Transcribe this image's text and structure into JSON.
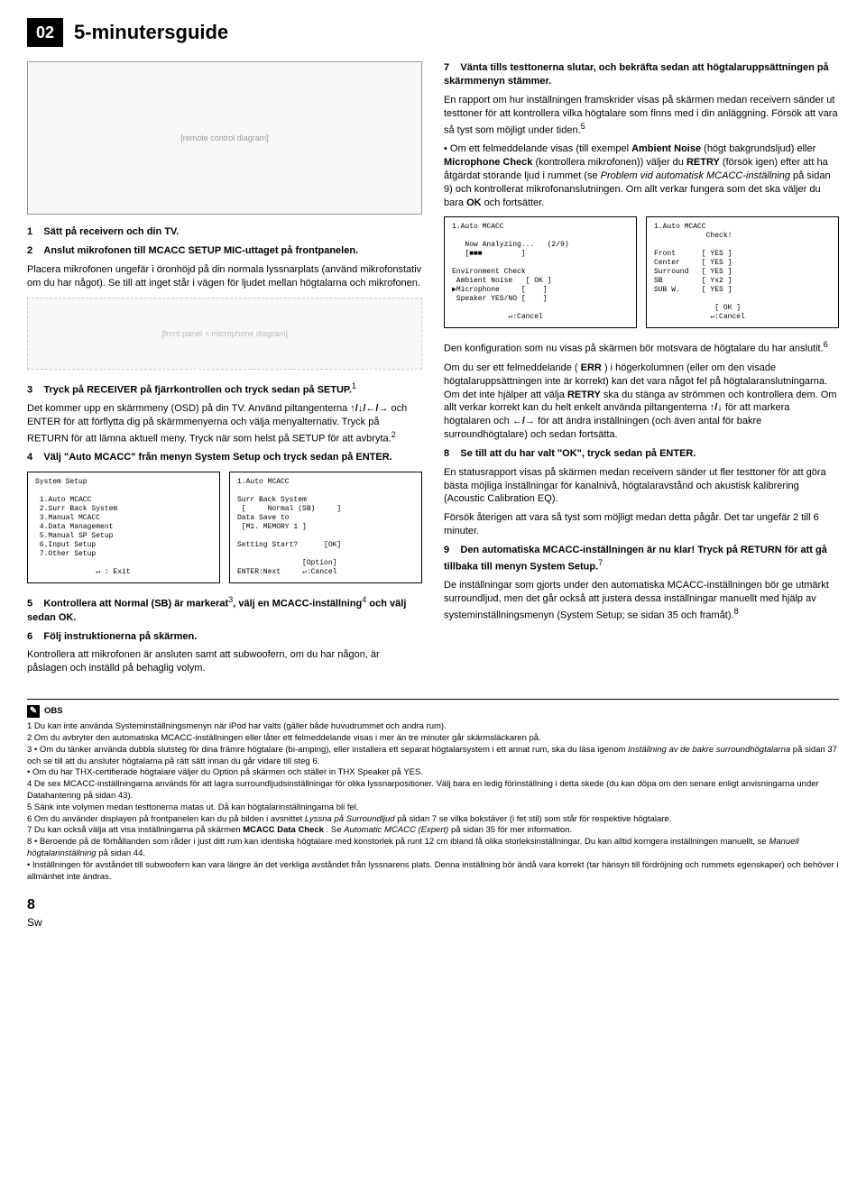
{
  "header": {
    "badge": "02",
    "title": "5-minutersguide"
  },
  "left": {
    "remote_placeholder": "[remote control diagram]",
    "s1_num": "1",
    "s1_title": "Sätt på receivern och din TV.",
    "s2_num": "2",
    "s2_title": "Anslut mikrofonen till MCACC SETUP MIC-uttaget på frontpanelen.",
    "s2_body": "Placera mikrofonen ungefär i öronhöjd på din normala lyssnarplats (använd mikrofonstativ om du har något). Se till att inget står i vägen för ljudet mellan högtalarna och mikrofonen.",
    "mic_placeholder": "[front panel + microphone diagram]",
    "s3_num": "3",
    "s3_title": "Tryck på RECEIVER på fjärrkontrollen och tryck sedan på SETUP.",
    "s3_sup": "1",
    "s3_body_a": "Det kommer upp en skärmmeny (OSD) på din TV. Använd piltangenterna ",
    "s3_body_b": " och ENTER för att förflytta dig på skärmmenyerna och välja menyalternativ. Tryck på RETURN för att lämna aktuell meny. Tryck när som helst på SETUP för att avbryta.",
    "s3_sup2": "2",
    "arrows1": "↑/↓/←/→",
    "s4_num": "4",
    "s4_title": "Välj \"Auto MCACC\" från menyn System Setup och tryck sedan på ENTER.",
    "osd_system_setup": "System Setup\n\n 1.Auto MCACC\n 2.Surr Back System\n 3.Manual MCACC\n 4.Data Management\n 5.Manual SP Setup\n 6.Input Setup\n 7.Other Setup\n\n              ↵ : Exit",
    "osd_auto_mcacc": "1.Auto MCACC\n\nSurr Back System\n [     Normal (SB)     ]\nData Save to\n [M1. MEMORY 1 ]\n\nSetting Start?      [OK]\n\n               [Option]\nENTER:Next     ↵:Cancel",
    "s5_num": "5",
    "s5_title_a": "Kontrollera att Normal (SB) är markerat",
    "s5_sup": "3",
    "s5_title_b": ", välj en MCACC-inställning",
    "s5_sup2": "4",
    "s5_title_c": " och välj sedan OK.",
    "s6_num": "6",
    "s6_title": "Följ instruktionerna på skärmen.",
    "s6_body": "Kontrollera att mikrofonen är ansluten samt att subwoofern, om du har någon, är påslagen och inställd på behaglig volym."
  },
  "right": {
    "s7_num": "7",
    "s7_title": "Vänta tills testtonerna slutar, och bekräfta sedan att högtalaruppsättningen på skärmmenyn stämmer.",
    "s7_body_a": "En rapport om hur inställningen framskrider visas på skärmen medan receivern sänder ut testtoner för att kontrollera vilka högtalare som finns med i din anläggning. Försök att vara så tyst som möjligt under tiden.",
    "s7_sup": "5",
    "bullet1_a": "Om ett felmeddelande visas (till exempel ",
    "bullet1_b": "Ambient Noise",
    "bullet1_c": " (högt bakgrundsljud) eller ",
    "bullet1_d": "Microphone Check",
    "bullet1_e": " (kontrollera mikrofonen)) väljer du ",
    "bullet1_f": "RETRY",
    "bullet1_g": " (försök igen) efter att ha åtgärdat störande ljud i rummet (se ",
    "bullet1_h": "Problem vid automatisk MCACC-inställning",
    "bullet1_i": " på sidan 9) och kontrollerat mikrofonanslutningen. Om allt verkar fungera som det ska väljer du bara ",
    "bullet1_j": "OK",
    "bullet1_k": " och fortsätter.",
    "osd_analyzing": "1.Auto MCACC\n\n   Now Analyzing...   (2/9)\n   [■■■         ]\n\nEnvironment Check\n Ambient Noise   [ OK ]\n▶Microphone     [    ]\n Speaker YES/NO [    ]\n\n             ↵:Cancel",
    "osd_check": "1.Auto MCACC\n            Check!\n\nFront      [ YES ]\nCenter     [ YES ]\nSurround   [ YES ]\nSB         [ Yx2 ]\nSUB W.     [ YES ]\n\n              [ OK ]\n             ↵:Cancel",
    "s7_p2_a": "Den konfiguration som nu visas på skärmen bör motsvara de högtalare du har anslutit.",
    "s7_p2_sup": "6",
    "s7_p3_a": "Om du ser ett felmeddelande (",
    "s7_p3_b": "ERR",
    "s7_p3_c": ") i högerkolumnen (eller om den visade högtalaruppsättningen inte är korrekt) kan det vara något fel på högtalaranslutningarna. Om det inte hjälper att välja ",
    "s7_p3_d": "RETRY",
    "s7_p3_e": " ska du stänga av strömmen och kontrollera dem. Om allt verkar korrekt kan du helt enkelt använda piltangenterna ",
    "arrows2": "↑/↓",
    "s7_p3_f": " för att markera högtalaren och ",
    "arrows3": "←/→",
    "s7_p3_g": " för att ändra inställningen (och även antal för bakre surroundhögtalare) och sedan fortsätta.",
    "s8_num": "8",
    "s8_title": "Se till att du har valt \"OK\", tryck sedan på ENTER.",
    "s8_body": "En statusrapport visas på skärmen medan receivern sänder ut fler testtoner för att göra bästa möjliga inställningar för kanalnivå, högtalaravstånd och akustisk kalibrering (Acoustic Calibration EQ).",
    "s8_body2": "Försök återigen att vara så tyst som möjligt medan detta pågår. Det tar ungefär 2 till 6 minuter.",
    "s9_num": "9",
    "s9_title": "Den automatiska MCACC-inställningen är nu klar! Tryck på RETURN för att gå tillbaka till menyn System Setup.",
    "s9_sup": "7",
    "s9_body_a": "De inställningar som gjorts under den automatiska MCACC-inställningen bör ge utmärkt surroundljud, men det går också att justera dessa inställningar manuellt med hjälp av systeminställningsmenyn (System Setup; se sidan 35 och framåt).",
    "s9_sup2": "8"
  },
  "obs": {
    "label": "OBS",
    "n1": "1 Du kan inte använda Systeminställningsmenyn när iPod har valts (gäller både huvudrummet och andra rum).",
    "n2": "2 Om du avbryter den automatiska MCACC-inställningen eller låter ett felmeddelande visas i mer än tre minuter går skärmsläckaren på.",
    "n3a": "3 • Om du tänker använda dubbla slutsteg för dina främre högtalare (bi-amping), eller installera ett separat högtalarsystem i ett annat rum, ska du läsa igenom ",
    "n3b": "Inställning av de bakre surroundhögtalarna",
    "n3c": " på sidan 37 och se till att du ansluter högtalarna på rätt sätt innan du går vidare till steg 6.",
    "n3d": "• Om du har THX-certifierade högtalare väljer du Option på skärmen och ställer in THX Speaker på YES.",
    "n4": "4 De sex MCACC-inställningarna används för att lagra surroundljudsinställningar för olika lyssnarpositioner. Välj bara en ledig förinställning i detta skede (du kan döpa om den senare enligt anvisningarna under Datahantering på sidan 43).",
    "n5": "5 Sänk inte volymen medan testtonerna matas ut. Då kan högtalarinställningarna bli fel.",
    "n6a": "6 Om du använder displayen på frontpanelen kan du på bilden i avsnittet ",
    "n6b": "Lyssna på Surroundljud",
    "n6c": " på sidan 7 se vilka bokstäver (i fet stil) som står för respektive högtalare.",
    "n7a": "7 Du kan också välja att visa inställningarna på skärmen ",
    "n7b": "MCACC Data Check",
    "n7c": ". Se ",
    "n7d": "Automatic MCACC (Expert)",
    "n7e": " på sidan 35 för mer information.",
    "n8a": "8 • Beroende på de förhållanden som råder i just ditt rum kan identiska högtalare med konstorlek på runt 12 cm ibland få olika storleksinställningar. Du kan alltid korrigera inställningen manuellt, se ",
    "n8b": "Manuell högtalarinställning",
    "n8c": " på sidan 44.",
    "n8d": "• Inställningen för avståndet till subwoofern kan vara längre än det verkliga avståndet från lyssnarens plats. Denna inställning bör ändå vara korrekt (tar hänsyn till fördröjning och rummets egenskaper) och behöver i allmänhet inte ändras."
  },
  "footer": {
    "num": "8",
    "lang": "Sw"
  }
}
